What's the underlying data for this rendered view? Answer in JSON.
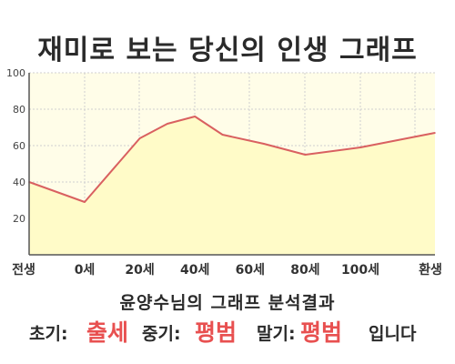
{
  "title": "재미로 보는 당신의 인생 그래프",
  "chart_data": {
    "type": "area",
    "title": "재미로 보는 당신의 인생 그래프",
    "x_labels": [
      "전생",
      "0세",
      "20세",
      "40세",
      "60세",
      "80세",
      "100세",
      "환생"
    ],
    "points": [
      {
        "x": "전생",
        "y": 40
      },
      {
        "x": "0세",
        "y": 29
      },
      {
        "x": "20세",
        "y": 64
      },
      {
        "x": "30세",
        "y": 72
      },
      {
        "x": "40세",
        "y": 76
      },
      {
        "x": "50세",
        "y": 66
      },
      {
        "x": "65세",
        "y": 61
      },
      {
        "x": "80세",
        "y": 55
      },
      {
        "x": "100세",
        "y": 59
      },
      {
        "x": "환생",
        "y": 67
      }
    ],
    "yticks": [
      20,
      40,
      60,
      80,
      100
    ],
    "ylim": [
      0,
      100
    ],
    "grid": true,
    "line_color": "#d96060",
    "fill_color": "#fffbc8",
    "background": "#fffde8"
  },
  "summary": "윤양수님의 그래프 분석결과",
  "result": {
    "early_label": "초기:",
    "early_value": "출세",
    "mid_label": "중기:",
    "mid_value": "평범",
    "late_label": "말기:",
    "late_value": "평범",
    "ending": "입니다"
  }
}
